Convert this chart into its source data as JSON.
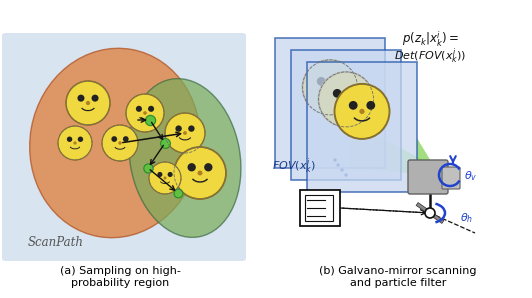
{
  "fig_width": 5.32,
  "fig_height": 2.98,
  "bg_color": "#ffffff",
  "left_panel_bg": "#d8e4f0",
  "title_a": "(a) Sampling on high-\nprobability region",
  "title_b": "(b) Galvano-mirror scanning\nand particle filter",
  "scanpath_label": "ScanPath",
  "formula_line1": "$p(z_k|x_k^i)=$",
  "formula_line2": "$Det(FOV(x_k^i))$",
  "fov_label": "$FOV(x_k^i)$",
  "theta_v": "$\\theta_v$",
  "theta_h": "$\\theta_h$",
  "caption_color": "#000000",
  "caption_fontsize": 8.0,
  "blue_color": "#4472c4",
  "arrow_color": "#1a1a1a",
  "orange_color": "#e07830",
  "green_ellipse_color": "#7aab5a",
  "smiley_face": "#f0d840",
  "smiley_edge": "#907010"
}
